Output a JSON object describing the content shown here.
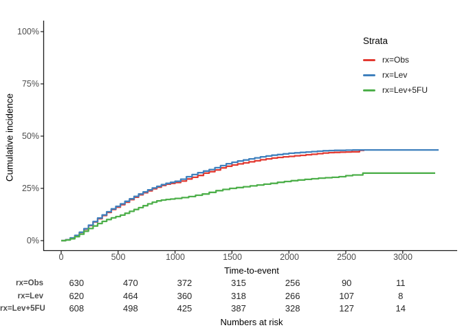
{
  "chart_data": {
    "type": "line",
    "subtype": "step-cumulative-incidence",
    "title": "",
    "xlabel": "Time-to-event",
    "ylabel": "Cumulative incidence",
    "xlim": [
      0,
      3329
    ],
    "ylim": [
      0,
      100
    ],
    "grid": false,
    "legend_position": "inside-top-right",
    "x_ticks": [
      0,
      500,
      1000,
      1500,
      2000,
      2500,
      3000
    ],
    "x_tick_labels": [
      "0",
      "500",
      "1000",
      "1500",
      "2000",
      "2500",
      "3000"
    ],
    "y_ticks": [
      0,
      25,
      50,
      75,
      100
    ],
    "y_tick_labels": [
      "0%",
      "25%",
      "50%",
      "75%",
      "100%"
    ],
    "series": [
      {
        "name": "rx=Obs",
        "color": "#E23930",
        "points": [
          [
            0,
            0
          ],
          [
            40,
            0.4
          ],
          [
            80,
            1.2
          ],
          [
            120,
            2.4
          ],
          [
            160,
            3.9
          ],
          [
            200,
            5.5
          ],
          [
            240,
            7.2
          ],
          [
            280,
            8.9
          ],
          [
            320,
            10.5
          ],
          [
            360,
            12
          ],
          [
            400,
            13.5
          ],
          [
            440,
            14.9
          ],
          [
            480,
            16
          ],
          [
            520,
            17.2
          ],
          [
            560,
            18.4
          ],
          [
            600,
            19.6
          ],
          [
            640,
            20.8
          ],
          [
            680,
            21.9
          ],
          [
            720,
            22.9
          ],
          [
            760,
            23.8
          ],
          [
            800,
            24.8
          ],
          [
            840,
            25.6
          ],
          [
            880,
            26.4
          ],
          [
            920,
            27
          ],
          [
            960,
            27.4
          ],
          [
            1000,
            27.8
          ],
          [
            1050,
            28.5
          ],
          [
            1100,
            29.5
          ],
          [
            1150,
            30.3
          ],
          [
            1200,
            31.2
          ],
          [
            1250,
            32.3
          ],
          [
            1300,
            33
          ],
          [
            1350,
            33.8
          ],
          [
            1400,
            34.8
          ],
          [
            1450,
            35.6
          ],
          [
            1500,
            36.2
          ],
          [
            1550,
            36.7
          ],
          [
            1600,
            37.2
          ],
          [
            1650,
            37.7
          ],
          [
            1700,
            38.2
          ],
          [
            1750,
            38.7
          ],
          [
            1800,
            39.1
          ],
          [
            1850,
            39.5
          ],
          [
            1900,
            39.8
          ],
          [
            1950,
            40.1
          ],
          [
            2000,
            40.3
          ],
          [
            2050,
            40.6
          ],
          [
            2100,
            40.8
          ],
          [
            2150,
            41.1
          ],
          [
            2200,
            41.3
          ],
          [
            2250,
            41.6
          ],
          [
            2300,
            41.9
          ],
          [
            2350,
            42.1
          ],
          [
            2400,
            42.2
          ],
          [
            2450,
            42.3
          ],
          [
            2500,
            42.4
          ],
          [
            2550,
            42.5
          ],
          [
            2620,
            43.2
          ],
          [
            2663,
            43.2
          ]
        ]
      },
      {
        "name": "rx=Lev",
        "color": "#3F80BD",
        "points": [
          [
            0,
            0
          ],
          [
            40,
            0.4
          ],
          [
            80,
            1.3
          ],
          [
            120,
            2.5
          ],
          [
            160,
            4
          ],
          [
            200,
            5.7
          ],
          [
            240,
            7.4
          ],
          [
            280,
            9.1
          ],
          [
            320,
            10.8
          ],
          [
            360,
            12.3
          ],
          [
            400,
            13.8
          ],
          [
            440,
            15.2
          ],
          [
            480,
            16.4
          ],
          [
            520,
            17.6
          ],
          [
            560,
            18.8
          ],
          [
            600,
            20
          ],
          [
            640,
            21.2
          ],
          [
            680,
            22.3
          ],
          [
            720,
            23.3
          ],
          [
            760,
            24.3
          ],
          [
            800,
            25.2
          ],
          [
            840,
            26
          ],
          [
            880,
            26.8
          ],
          [
            920,
            27.4
          ],
          [
            960,
            27.9
          ],
          [
            1000,
            28.4
          ],
          [
            1050,
            29.4
          ],
          [
            1100,
            30.6
          ],
          [
            1150,
            31.6
          ],
          [
            1200,
            32.5
          ],
          [
            1250,
            33.3
          ],
          [
            1300,
            34
          ],
          [
            1350,
            34.9
          ],
          [
            1400,
            35.9
          ],
          [
            1450,
            36.8
          ],
          [
            1500,
            37.5
          ],
          [
            1550,
            38.1
          ],
          [
            1600,
            38.6
          ],
          [
            1650,
            39.1
          ],
          [
            1700,
            39.6
          ],
          [
            1750,
            40.1
          ],
          [
            1800,
            40.5
          ],
          [
            1850,
            40.9
          ],
          [
            1900,
            41.2
          ],
          [
            1950,
            41.5
          ],
          [
            2000,
            41.8
          ],
          [
            2050,
            42
          ],
          [
            2100,
            42.2
          ],
          [
            2150,
            42.4
          ],
          [
            2200,
            42.6
          ],
          [
            2250,
            42.8
          ],
          [
            2300,
            43
          ],
          [
            2350,
            43.1
          ],
          [
            2400,
            43.2
          ],
          [
            2500,
            43.3
          ],
          [
            2560,
            43.4
          ],
          [
            2700,
            43.4
          ],
          [
            2900,
            43.4
          ],
          [
            3100,
            43.4
          ],
          [
            3315,
            43.4
          ]
        ]
      },
      {
        "name": "rx=Lev+5FU",
        "color": "#4DAF4A",
        "points": [
          [
            0,
            0
          ],
          [
            40,
            0.3
          ],
          [
            80,
            0.9
          ],
          [
            120,
            1.9
          ],
          [
            160,
            3.1
          ],
          [
            200,
            4.5
          ],
          [
            240,
            5.8
          ],
          [
            280,
            7
          ],
          [
            320,
            8.2
          ],
          [
            360,
            9.2
          ],
          [
            400,
            10.1
          ],
          [
            440,
            10.9
          ],
          [
            480,
            11.5
          ],
          [
            520,
            12.2
          ],
          [
            560,
            13.1
          ],
          [
            600,
            14
          ],
          [
            640,
            14.9
          ],
          [
            680,
            15.8
          ],
          [
            720,
            16.7
          ],
          [
            760,
            17.6
          ],
          [
            800,
            18.4
          ],
          [
            840,
            19
          ],
          [
            880,
            19.4
          ],
          [
            920,
            19.7
          ],
          [
            960,
            19.9
          ],
          [
            1000,
            20.2
          ],
          [
            1060,
            20.6
          ],
          [
            1120,
            21.1
          ],
          [
            1180,
            21.7
          ],
          [
            1240,
            22.3
          ],
          [
            1300,
            23.1
          ],
          [
            1360,
            23.9
          ],
          [
            1420,
            24.5
          ],
          [
            1480,
            25
          ],
          [
            1540,
            25.4
          ],
          [
            1600,
            25.8
          ],
          [
            1660,
            26.2
          ],
          [
            1720,
            26.6
          ],
          [
            1780,
            27
          ],
          [
            1840,
            27.4
          ],
          [
            1900,
            27.9
          ],
          [
            1960,
            28.3
          ],
          [
            2020,
            28.7
          ],
          [
            2080,
            29
          ],
          [
            2140,
            29.3
          ],
          [
            2200,
            29.6
          ],
          [
            2260,
            29.9
          ],
          [
            2320,
            30.1
          ],
          [
            2380,
            30.3
          ],
          [
            2440,
            30.6
          ],
          [
            2500,
            31.1
          ],
          [
            2560,
            31.4
          ],
          [
            2650,
            32.3
          ],
          [
            2800,
            32.3
          ],
          [
            3000,
            32.3
          ],
          [
            3285,
            32.3
          ]
        ]
      }
    ]
  },
  "legend": {
    "title": "Strata",
    "items": [
      {
        "label": "rx=Obs",
        "color": "#E23930"
      },
      {
        "label": "rx=Lev",
        "color": "#3F80BD"
      },
      {
        "label": "rx=Lev+5FU",
        "color": "#4DAF4A"
      }
    ]
  },
  "risk_table": {
    "caption": "Numbers at risk",
    "time_points": [
      0,
      500,
      1000,
      1500,
      2000,
      2500,
      3000
    ],
    "rows": [
      {
        "label": "rx=Obs",
        "counts": [
          "630",
          "470",
          "372",
          "315",
          "256",
          "90",
          "11"
        ]
      },
      {
        "label": "rx=Lev",
        "counts": [
          "620",
          "464",
          "360",
          "318",
          "266",
          "107",
          "8"
        ]
      },
      {
        "label": "rx=Lev+5FU",
        "counts": [
          "608",
          "498",
          "425",
          "387",
          "328",
          "127",
          "14"
        ]
      }
    ]
  },
  "style": {
    "axis_color": "#1a1a1a",
    "tick_text_color": "#4d4d4d",
    "background": "#ffffff"
  }
}
